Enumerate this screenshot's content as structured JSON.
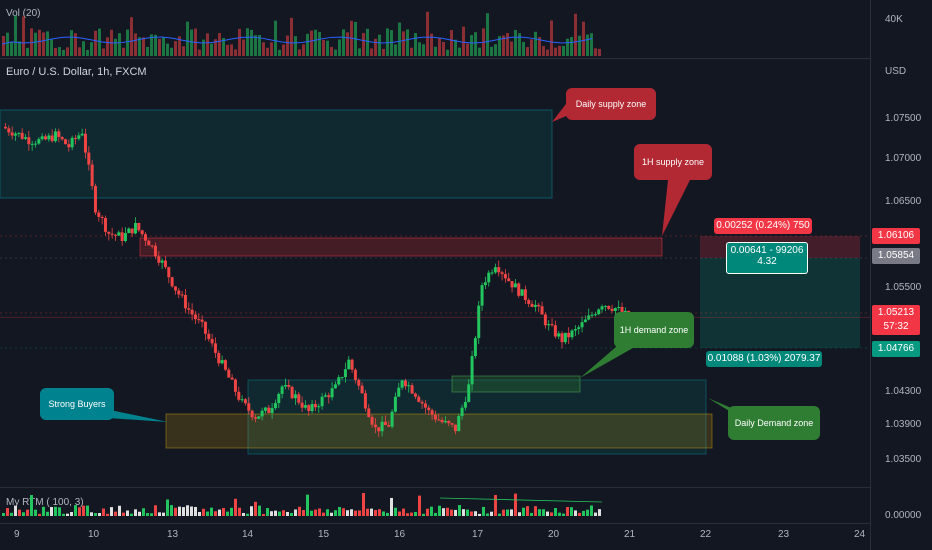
{
  "volume_pane": {
    "label": "Vol (20)",
    "axis_tick": "40K"
  },
  "main_pane": {
    "title": "Euro / U.S. Dollar, 1h, FXCM",
    "currency": "USD"
  },
  "indicator_pane": {
    "label": "My RTM ( 100, 3)",
    "axis_tick": "0.00000"
  },
  "price_ticks": [
    "1.07500",
    "1.07000",
    "1.06500",
    "1.05500",
    "1.04300",
    "1.03900",
    "1.03500"
  ],
  "price_tags": [
    {
      "value": "1.06106",
      "color": "#f23645"
    },
    {
      "value": "1.05854",
      "color": "#787b86"
    },
    {
      "value": "1.05213",
      "color": "#f23645"
    },
    {
      "value": "57:32",
      "color": "#f23645"
    },
    {
      "value": "1.04766",
      "color": "#089981"
    }
  ],
  "x_ticks": [
    "9",
    "10",
    "13",
    "14",
    "15",
    "16",
    "17",
    "20",
    "21",
    "22",
    "23",
    "24"
  ],
  "zones": [
    {
      "label": "Daily supply zone",
      "color": "#b22833"
    },
    {
      "label": "1H supply zone",
      "color": "#b22833"
    },
    {
      "label": "1H demand zone",
      "color": "#2e7d32"
    },
    {
      "label": "Daily Demand zone",
      "color": "#2e7d32"
    },
    {
      "label": "Strong Buyers",
      "color": "#00838f"
    }
  ],
  "measure": {
    "risk_label": "0.00252 (0.24%) 750",
    "center_line1": "0.00641 - 99206",
    "center_line2": "4.32",
    "reward_label": "0.01088 (1.03%) 2079.37"
  },
  "chart_data": {
    "type": "candlestick",
    "title": "Euro / U.S. Dollar, 1h, FXCM",
    "ylabel": "USD",
    "ylim": [
      1.033,
      1.08
    ],
    "x": [
      "9",
      "10",
      "13",
      "14",
      "15",
      "16",
      "17",
      "20",
      "21",
      "22",
      "23",
      "24"
    ],
    "close_path": [
      1.0745,
      1.0738,
      1.073,
      1.0728,
      1.0735,
      1.0722,
      1.074,
      1.065,
      1.062,
      1.0615,
      1.0628,
      1.061,
      1.0585,
      1.0555,
      1.053,
      1.051,
      1.048,
      1.045,
      1.042,
      1.0405,
      1.0412,
      1.044,
      1.0428,
      1.041,
      1.0425,
      1.0438,
      1.047,
      1.043,
      1.039,
      1.0395,
      1.045,
      1.0432,
      1.041,
      1.0398,
      1.039,
      1.044,
      1.056,
      1.0585,
      1.0565,
      1.0548,
      1.0535,
      1.051,
      1.0495,
      1.0505,
      1.052,
      1.0538,
      1.0532,
      1.0521
    ],
    "last_price": 1.05213,
    "levels": [
      1.06106,
      1.05854,
      1.05213,
      1.04766
    ],
    "series": [
      {
        "name": "Vol (20)"
      },
      {
        "name": "My RTM ( 100, 3)"
      }
    ]
  }
}
